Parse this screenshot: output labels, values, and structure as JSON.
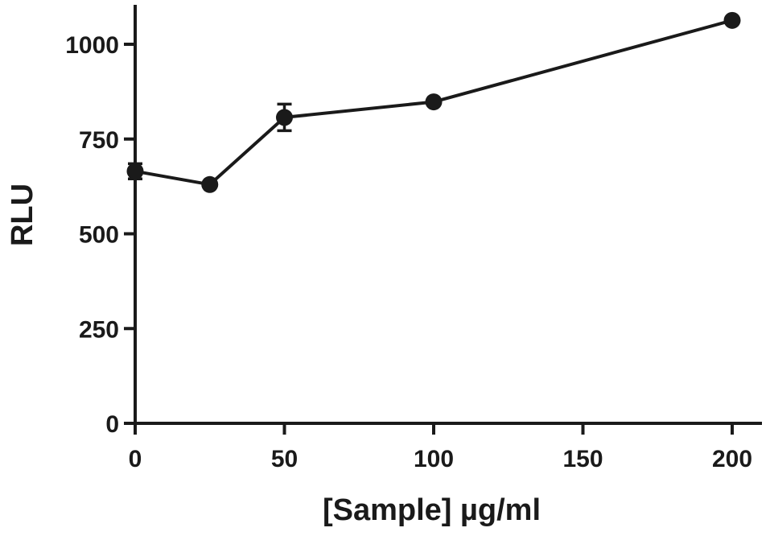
{
  "chart_data": {
    "type": "line",
    "xlabel": "[Sample] µg/ml",
    "ylabel": "RLU",
    "xlim": [
      0,
      200
    ],
    "ylim": [
      0,
      1000
    ],
    "xticks": [
      0,
      50,
      100,
      150,
      200
    ],
    "yticks": [
      0,
      250,
      500,
      750,
      1000
    ],
    "x_tick_labels": [
      "0",
      "50",
      "100",
      "150",
      "200"
    ],
    "y_tick_labels": [
      "0",
      "250",
      "500",
      "750",
      "1000"
    ],
    "grid": false,
    "series": [
      {
        "x": [
          0,
          25,
          50,
          100,
          200
        ],
        "y": [
          665,
          630,
          807,
          848,
          1063
        ],
        "error": [
          20,
          0,
          35,
          0,
          0
        ],
        "color": "#1a1a1a"
      }
    ]
  }
}
